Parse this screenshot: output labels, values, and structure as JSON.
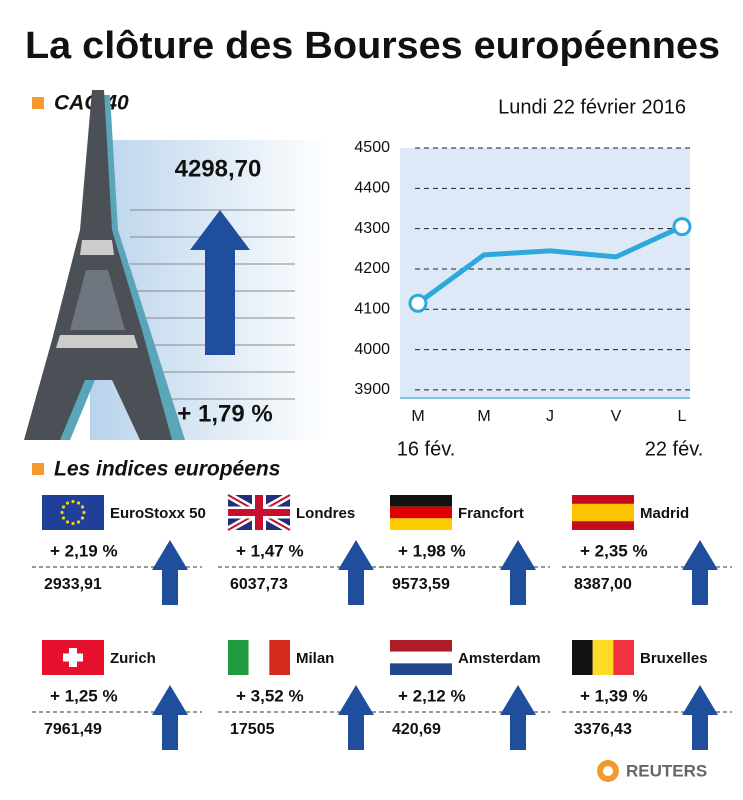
{
  "title": "La clôture des Bourses européennes",
  "cac": {
    "label": "CAC 40",
    "date": "Lundi 22 février 2016",
    "close": "4298,70",
    "change": "+ 1,79 %"
  },
  "chart_data": {
    "type": "line",
    "categories": [
      "M",
      "M",
      "J",
      "V",
      "L"
    ],
    "date_labels": [
      "16 fév.",
      null,
      null,
      null,
      "22 fév."
    ],
    "series": [
      {
        "color": "#2ea8dc",
        "values": [
          4115,
          4235,
          4245,
          4230,
          4305
        ]
      }
    ],
    "ylim": [
      3880,
      4500
    ],
    "yticks": [
      3900,
      4000,
      4100,
      4200,
      4300,
      4400,
      4500
    ],
    "grid": true
  },
  "indices_label": "Les indices européens",
  "indices": [
    {
      "name": "EuroStoxx 50",
      "change": "+ 2,19 %",
      "close": "2933,91"
    },
    {
      "name": "Londres",
      "change": "+ 1,47 %",
      "close": "6037,73"
    },
    {
      "name": "Francfort",
      "change": "+ 1,98 %",
      "close": "9573,59"
    },
    {
      "name": "Madrid",
      "change": "+ 2,35 %",
      "close": "8387,00"
    },
    {
      "name": "Zurich",
      "change": "+ 1,25 %",
      "close": "7961,49"
    },
    {
      "name": "Milan",
      "change": "+ 3,52 %",
      "close": "17505"
    },
    {
      "name": "Amsterdam",
      "change": "+ 2,12 %",
      "close": "420,69"
    },
    {
      "name": "Bruxelles",
      "change": "+ 1,39 %",
      "close": "3376,43"
    }
  ],
  "source": "REUTERS"
}
